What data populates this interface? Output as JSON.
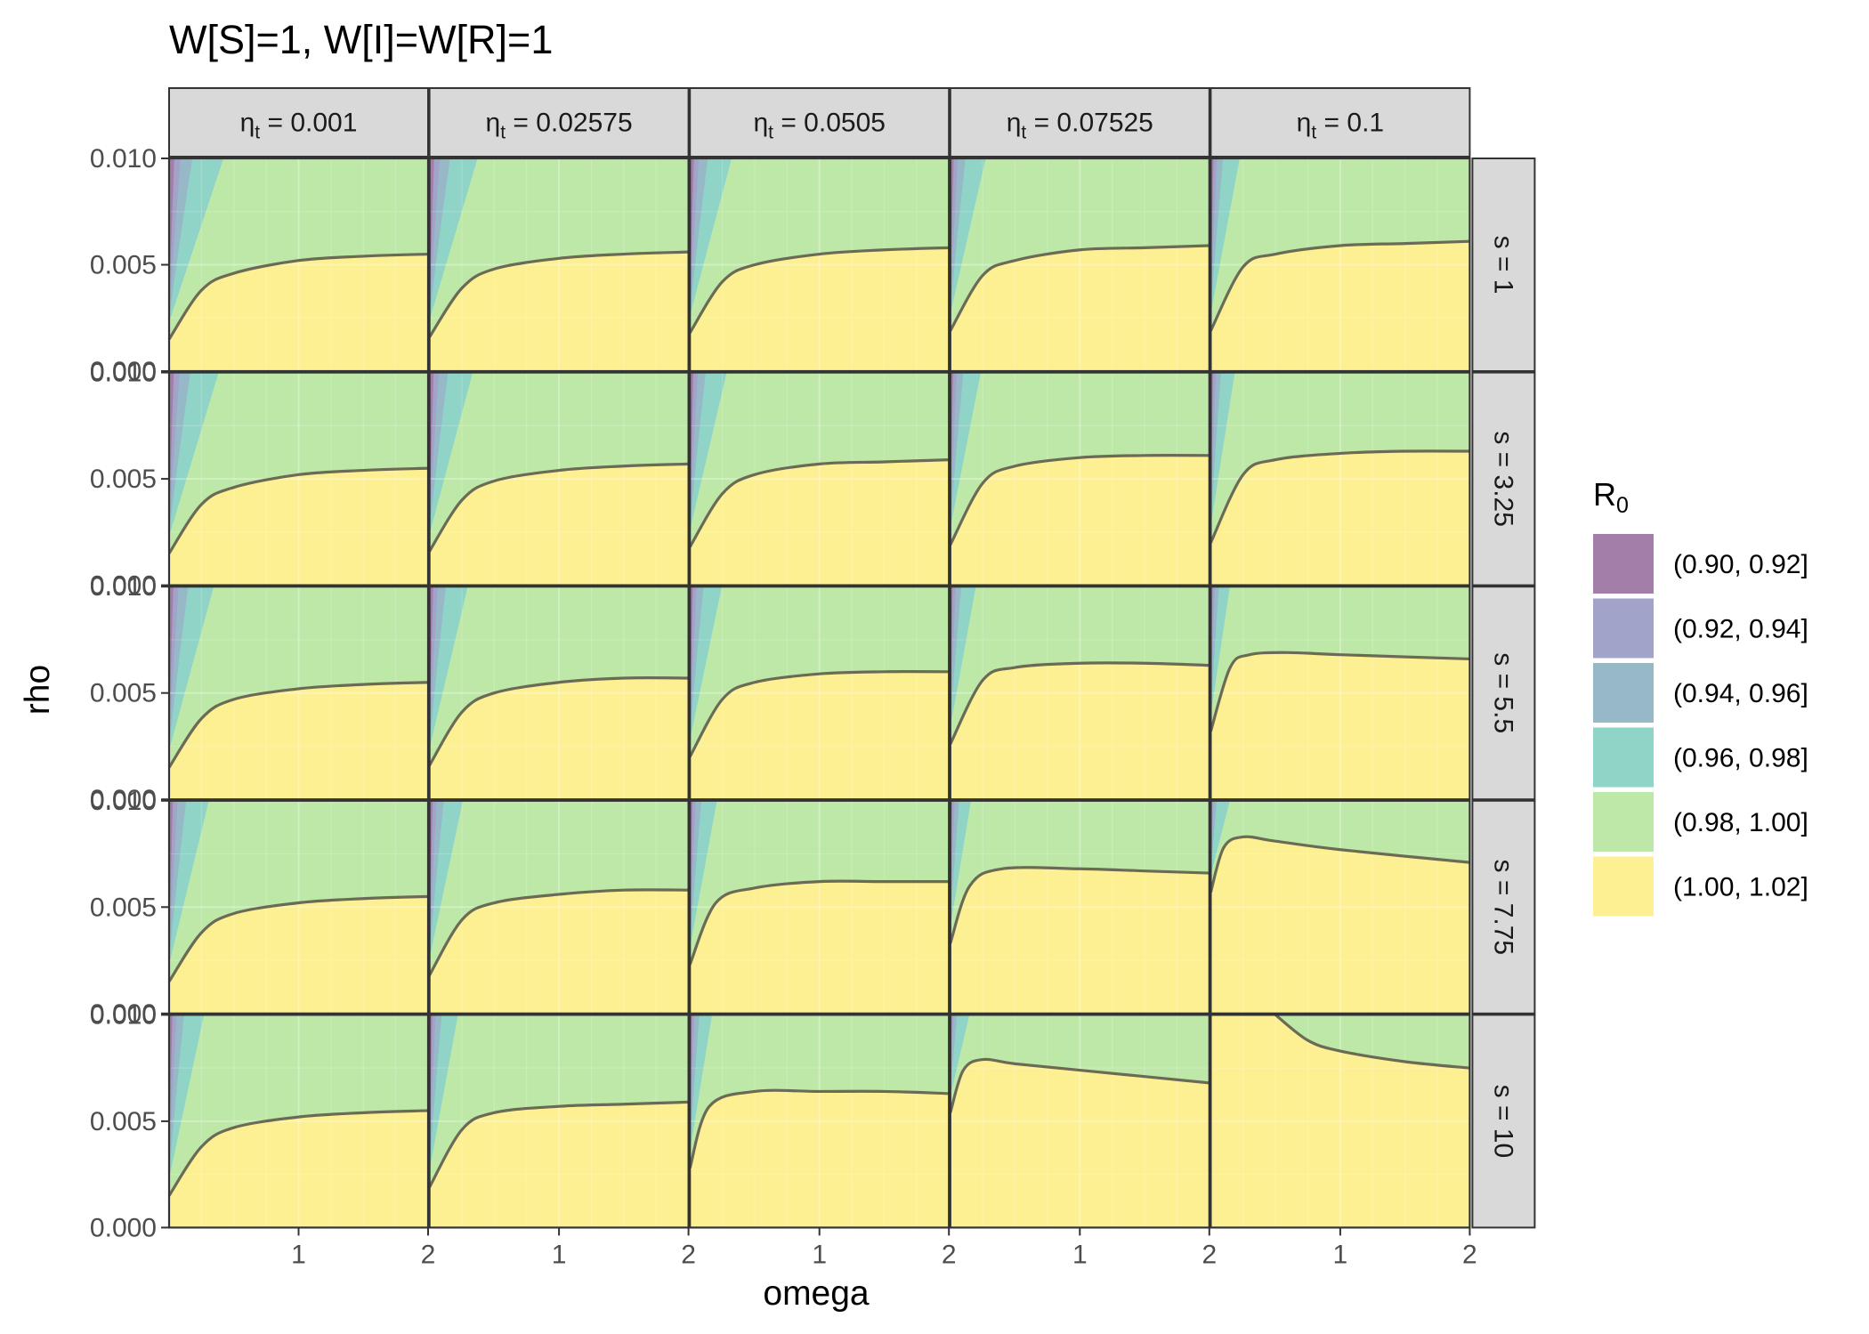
{
  "chart_data": {
    "type": "area",
    "title": "W[S]=1, W[I]=W[R]=1",
    "xlabel": "omega",
    "ylabel": "rho",
    "xlim": [
      0,
      2
    ],
    "ylim": [
      0,
      0.01
    ],
    "x_ticks": [
      "1",
      "2"
    ],
    "y_ticks": [
      "0.000",
      "0.005",
      "0.010"
    ],
    "grid": true,
    "legend_position": "right",
    "legend": {
      "title_main": "R",
      "title_sub": "0",
      "entries": [
        {
          "label": "(0.90, 0.92]",
          "color": "#a37ea9"
        },
        {
          "label": "(0.92, 0.94]",
          "color": "#a1a3c8"
        },
        {
          "label": "(0.94, 0.96]",
          "color": "#97b9c7"
        },
        {
          "label": "(0.96, 0.98]",
          "color": "#8fd4c6"
        },
        {
          "label": "(0.98, 1.00]",
          "color": "#bde8a8"
        },
        {
          "label": "(1.00, 1.02]",
          "color": "#fdf092"
        }
      ]
    },
    "col_facets": [
      {
        "symbol": "η",
        "sub": "t",
        "value": " = 0.001"
      },
      {
        "symbol": "η",
        "sub": "t",
        "value": " = 0.02575"
      },
      {
        "symbol": "η",
        "sub": "t",
        "value": " = 0.0505"
      },
      {
        "symbol": "η",
        "sub": "t",
        "value": " = 0.07525"
      },
      {
        "symbol": "η",
        "sub": "t",
        "value": " = 0.1"
      }
    ],
    "row_facets": [
      "s = 1",
      "s = 3.25",
      "s = 5.5",
      "s = 7.75",
      "s = 10"
    ],
    "boundary_curve": {
      "note": "R0 = 1 contour, rho vs omega",
      "panels": [
        [
          [
            [
              0,
              0.0015
            ],
            [
              0.25,
              0.0038
            ],
            [
              0.5,
              0.0046
            ],
            [
              1,
              0.0052
            ],
            [
              1.5,
              0.0054
            ],
            [
              2,
              0.0055
            ]
          ],
          [
            [
              0,
              0.0016
            ],
            [
              0.25,
              0.0039
            ],
            [
              0.5,
              0.0048
            ],
            [
              1,
              0.0053
            ],
            [
              1.5,
              0.0055
            ],
            [
              2,
              0.0056
            ]
          ],
          [
            [
              0,
              0.0018
            ],
            [
              0.25,
              0.0042
            ],
            [
              0.5,
              0.005
            ],
            [
              1,
              0.0055
            ],
            [
              1.5,
              0.0057
            ],
            [
              2,
              0.0058
            ]
          ],
          [
            [
              0,
              0.0019
            ],
            [
              0.25,
              0.0045
            ],
            [
              0.5,
              0.0052
            ],
            [
              1,
              0.0057
            ],
            [
              1.5,
              0.0058
            ],
            [
              2,
              0.0059
            ]
          ],
          [
            [
              0,
              0.0019
            ],
            [
              0.25,
              0.0049
            ],
            [
              0.5,
              0.0055
            ],
            [
              1,
              0.0059
            ],
            [
              1.5,
              0.006
            ],
            [
              2,
              0.0061
            ]
          ]
        ],
        [
          [
            [
              0,
              0.0015
            ],
            [
              0.25,
              0.0038
            ],
            [
              0.5,
              0.0046
            ],
            [
              1,
              0.0052
            ],
            [
              1.5,
              0.0054
            ],
            [
              2,
              0.0055
            ]
          ],
          [
            [
              0,
              0.0016
            ],
            [
              0.25,
              0.004
            ],
            [
              0.5,
              0.0049
            ],
            [
              1,
              0.0054
            ],
            [
              1.5,
              0.0056
            ],
            [
              2,
              0.0057
            ]
          ],
          [
            [
              0,
              0.0018
            ],
            [
              0.25,
              0.0043
            ],
            [
              0.5,
              0.0052
            ],
            [
              1,
              0.0057
            ],
            [
              1.5,
              0.0058
            ],
            [
              2,
              0.0059
            ]
          ],
          [
            [
              0,
              0.0019
            ],
            [
              0.25,
              0.0048
            ],
            [
              0.5,
              0.0056
            ],
            [
              1,
              0.006
            ],
            [
              1.5,
              0.0061
            ],
            [
              2,
              0.0061
            ]
          ],
          [
            [
              0,
              0.002
            ],
            [
              0.25,
              0.0052
            ],
            [
              0.5,
              0.0059
            ],
            [
              1,
              0.0062
            ],
            [
              1.5,
              0.0063
            ],
            [
              2,
              0.0063
            ]
          ]
        ],
        [
          [
            [
              0,
              0.0015
            ],
            [
              0.25,
              0.0038
            ],
            [
              0.5,
              0.0047
            ],
            [
              1,
              0.0052
            ],
            [
              1.5,
              0.0054
            ],
            [
              2,
              0.0055
            ]
          ],
          [
            [
              0,
              0.0016
            ],
            [
              0.25,
              0.0041
            ],
            [
              0.5,
              0.005
            ],
            [
              1,
              0.0055
            ],
            [
              1.5,
              0.0057
            ],
            [
              2,
              0.0057
            ]
          ],
          [
            [
              0,
              0.002
            ],
            [
              0.25,
              0.0047
            ],
            [
              0.5,
              0.0055
            ],
            [
              1,
              0.0059
            ],
            [
              1.5,
              0.006
            ],
            [
              2,
              0.006
            ]
          ],
          [
            [
              0,
              0.0026
            ],
            [
              0.25,
              0.0056
            ],
            [
              0.5,
              0.0062
            ],
            [
              1,
              0.0064
            ],
            [
              1.5,
              0.0064
            ],
            [
              2,
              0.0063
            ]
          ],
          [
            [
              0,
              0.0032
            ],
            [
              0.15,
              0.0062
            ],
            [
              0.3,
              0.0068
            ],
            [
              0.6,
              0.0069
            ],
            [
              1,
              0.0068
            ],
            [
              2,
              0.0066
            ]
          ]
        ],
        [
          [
            [
              0,
              0.0015
            ],
            [
              0.25,
              0.0038
            ],
            [
              0.5,
              0.0047
            ],
            [
              1,
              0.0052
            ],
            [
              1.5,
              0.0054
            ],
            [
              2,
              0.0055
            ]
          ],
          [
            [
              0,
              0.0018
            ],
            [
              0.25,
              0.0044
            ],
            [
              0.5,
              0.0052
            ],
            [
              1,
              0.0056
            ],
            [
              1.5,
              0.0058
            ],
            [
              2,
              0.0058
            ]
          ],
          [
            [
              0,
              0.0023
            ],
            [
              0.2,
              0.0052
            ],
            [
              0.5,
              0.0059
            ],
            [
              1,
              0.0062
            ],
            [
              1.5,
              0.0062
            ],
            [
              2,
              0.0062
            ]
          ],
          [
            [
              0,
              0.0033
            ],
            [
              0.15,
              0.006
            ],
            [
              0.4,
              0.0068
            ],
            [
              1,
              0.0068
            ],
            [
              1.5,
              0.0067
            ],
            [
              2,
              0.0066
            ]
          ],
          [
            [
              0,
              0.0057
            ],
            [
              0.1,
              0.0078
            ],
            [
              0.25,
              0.0083
            ],
            [
              0.5,
              0.0081
            ],
            [
              1,
              0.0077
            ],
            [
              2,
              0.0071
            ]
          ]
        ],
        [
          [
            [
              0,
              0.0015
            ],
            [
              0.25,
              0.0038
            ],
            [
              0.5,
              0.0047
            ],
            [
              1,
              0.0052
            ],
            [
              1.5,
              0.0054
            ],
            [
              2,
              0.0055
            ]
          ],
          [
            [
              0,
              0.0019
            ],
            [
              0.25,
              0.0046
            ],
            [
              0.5,
              0.0054
            ],
            [
              1,
              0.0057
            ],
            [
              1.5,
              0.0058
            ],
            [
              2,
              0.0059
            ]
          ],
          [
            [
              0,
              0.0028
            ],
            [
              0.15,
              0.0057
            ],
            [
              0.5,
              0.0064
            ],
            [
              1,
              0.0064
            ],
            [
              1.5,
              0.0064
            ],
            [
              2,
              0.0063
            ]
          ],
          [
            [
              0,
              0.0054
            ],
            [
              0.1,
              0.0074
            ],
            [
              0.25,
              0.0079
            ],
            [
              0.5,
              0.0077
            ],
            [
              1,
              0.0074
            ],
            [
              2,
              0.0068
            ]
          ],
          [
            [
              0.5,
              0.01
            ],
            [
              0.75,
              0.0088
            ],
            [
              1,
              0.0083
            ],
            [
              1.5,
              0.0078
            ],
            [
              2,
              0.0075
            ]
          ]
        ]
      ]
    }
  }
}
